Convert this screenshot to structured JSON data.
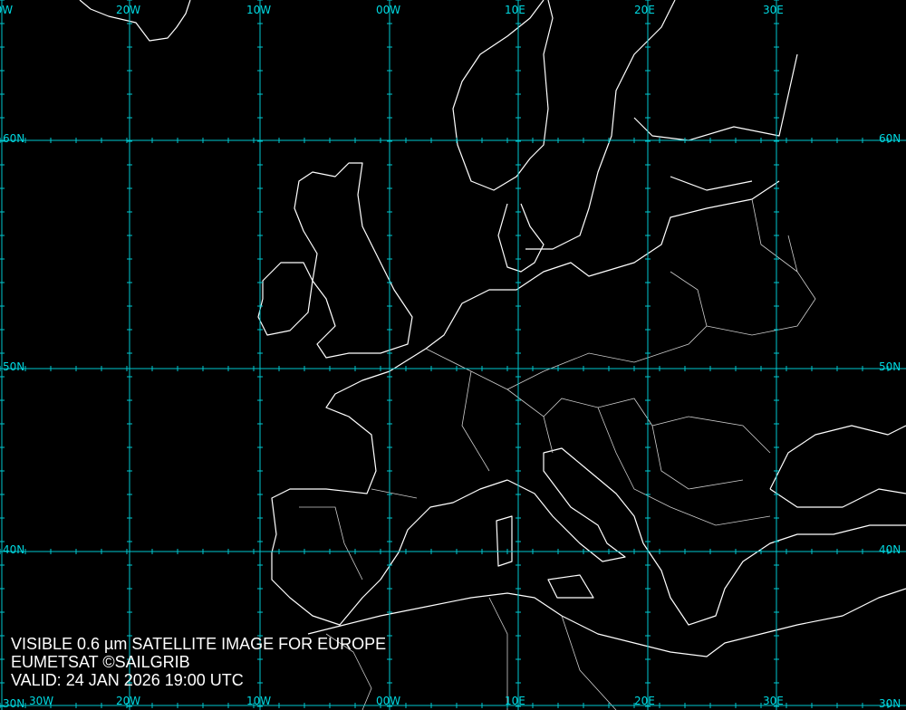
{
  "caption": {
    "line1": "VISIBLE 0.6 µm SATELLITE IMAGE FOR EUROPE",
    "line2": "EUMETSAT ©SAILGRIB",
    "line3": "VALID:  24 JAN 2026 19:00 UTC"
  },
  "grid": {
    "color": "#00c8d0",
    "longitudes": [
      "30W",
      "20W",
      "10W",
      "00W",
      "10E",
      "20E",
      "30E"
    ],
    "latitudes": [
      "60N",
      "50N",
      "40N",
      "30N"
    ]
  },
  "coastline_color": "#ffffff"
}
